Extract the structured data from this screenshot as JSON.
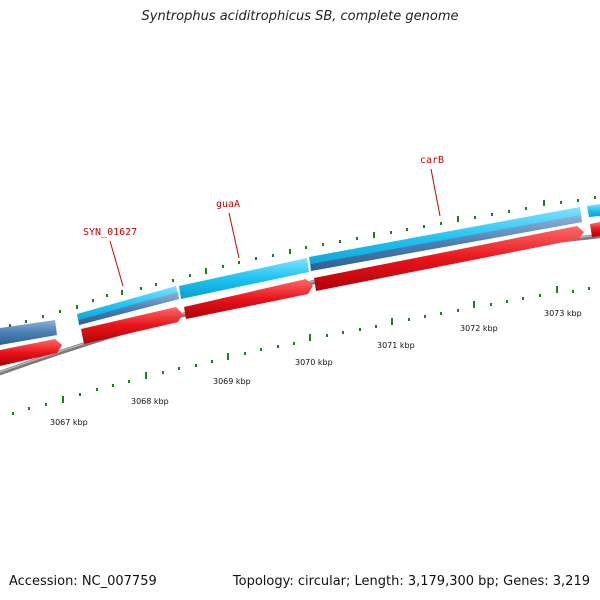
{
  "title": "Syntrophus aciditrophicus SB, complete genome",
  "footer": {
    "accession_text": "Accession: NC_007759",
    "summary_text": "Topology: circular; Length: 3,179,300 bp; Genes: 3,219"
  },
  "genome": {
    "accession": "NC_007759",
    "topology": "circular",
    "length_bp": 3179300,
    "genes": 3219
  },
  "scale_labels": [
    "3067 kbp",
    "3068 kbp",
    "3069 kbp",
    "3070 kbp",
    "3071 kbp",
    "3072 kbp",
    "3073 kbp"
  ],
  "gene_labels": [
    "SYN_01627",
    "guaA",
    "carB"
  ],
  "colors": {
    "cds_forward": "#1ec3f0",
    "cds_forward_dark": "#4a7fb5",
    "cds_reverse": "#e8141a",
    "backbone": "#8a8a8a",
    "tick": "#1b7f1b",
    "gene_label": "#cc0000"
  }
}
